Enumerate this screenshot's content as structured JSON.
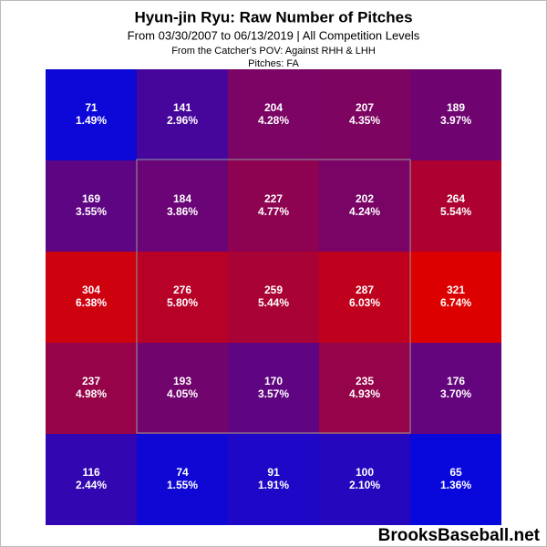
{
  "chart_data": {
    "type": "heatmap",
    "title": "Hyun-jin Ryu: Raw Number of Pitches",
    "subtitle": "From 03/30/2007 to 06/13/2019 | All Competition Levels",
    "note_pov": "From the Catcher's POV:  Against RHH & LHH",
    "note_pitches": "Pitches:  FA",
    "watermark": "BrooksBaseball.net",
    "values": [
      [
        71,
        141,
        204,
        207,
        189
      ],
      [
        169,
        184,
        227,
        202,
        264
      ],
      [
        304,
        276,
        259,
        287,
        321
      ],
      [
        237,
        193,
        170,
        235,
        176
      ],
      [
        116,
        74,
        91,
        100,
        65
      ]
    ],
    "percents": [
      [
        1.49,
        2.96,
        4.28,
        4.35,
        3.97
      ],
      [
        3.55,
        3.86,
        4.77,
        4.24,
        5.54
      ],
      [
        6.38,
        5.8,
        5.44,
        6.03,
        6.74
      ],
      [
        4.98,
        4.05,
        3.57,
        4.93,
        3.7
      ],
      [
        2.44,
        1.55,
        1.91,
        2.1,
        1.36
      ]
    ],
    "percent_labels": [
      [
        "1.49%",
        "2.96%",
        "4.28%",
        "4.35%",
        "3.97%"
      ],
      [
        "3.55%",
        "3.86%",
        "4.77%",
        "4.24%",
        "5.54%"
      ],
      [
        "6.38%",
        "5.80%",
        "5.44%",
        "6.03%",
        "6.74%"
      ],
      [
        "4.98%",
        "4.05%",
        "3.57%",
        "4.93%",
        "3.70%"
      ],
      [
        "2.44%",
        "1.55%",
        "1.91%",
        "2.10%",
        "1.36%"
      ]
    ],
    "color_low": "#0808dc",
    "color_high": "#dc0000",
    "zone_color": "#999999"
  }
}
